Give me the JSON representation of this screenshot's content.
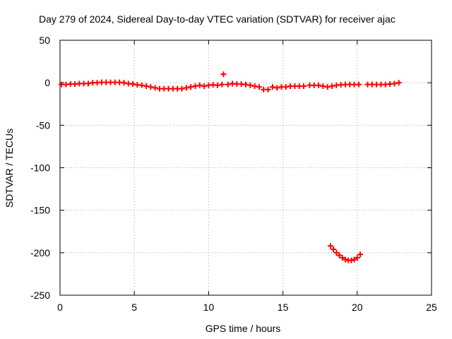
{
  "chart_data": {
    "type": "scatter",
    "title": "Day 279 of 2024, Sidereal Day-to-day VTEC variation (SDTVAR) for receiver ajac",
    "xlabel": "GPS time / hours",
    "ylabel": "SDTVAR / TECUs",
    "xlim": [
      0,
      25
    ],
    "ylim": [
      -250,
      50
    ],
    "xticks": [
      0,
      5,
      10,
      15,
      20,
      25
    ],
    "yticks": [
      -250,
      -200,
      -150,
      -100,
      -50,
      0,
      50
    ],
    "grid": true,
    "marker": "+",
    "series": [
      {
        "color": "#ff0000",
        "points": [
          [
            0.1,
            -2
          ],
          [
            0.4,
            -2
          ],
          [
            0.7,
            -1.5
          ],
          [
            1.0,
            -1.5
          ],
          [
            1.3,
            -1
          ],
          [
            1.6,
            -1
          ],
          [
            1.9,
            -1
          ],
          [
            2.2,
            0
          ],
          [
            2.5,
            0
          ],
          [
            2.8,
            0.5
          ],
          [
            3.1,
            0.5
          ],
          [
            3.4,
            0.5
          ],
          [
            3.7,
            0.5
          ],
          [
            4.0,
            0.5
          ],
          [
            4.3,
            0
          ],
          [
            4.6,
            -1
          ],
          [
            4.9,
            -1.5
          ],
          [
            5.2,
            -2.5
          ],
          [
            5.5,
            -3
          ],
          [
            5.8,
            -4
          ],
          [
            6.1,
            -5
          ],
          [
            6.4,
            -6
          ],
          [
            6.7,
            -7
          ],
          [
            7.0,
            -7
          ],
          [
            7.3,
            -7
          ],
          [
            7.6,
            -7
          ],
          [
            7.9,
            -7
          ],
          [
            8.2,
            -7
          ],
          [
            8.5,
            -6
          ],
          [
            8.8,
            -5
          ],
          [
            9.1,
            -4
          ],
          [
            9.4,
            -3
          ],
          [
            9.7,
            -4
          ],
          [
            10.0,
            -3
          ],
          [
            10.3,
            -2.5
          ],
          [
            10.6,
            -3
          ],
          [
            10.9,
            -2
          ],
          [
            11.0,
            10
          ],
          [
            11.3,
            -2
          ],
          [
            11.6,
            -1
          ],
          [
            11.9,
            -1.5
          ],
          [
            12.2,
            -1.5
          ],
          [
            12.5,
            -2
          ],
          [
            12.8,
            -3
          ],
          [
            13.1,
            -4
          ],
          [
            13.4,
            -5
          ],
          [
            13.7,
            -8
          ],
          [
            14.0,
            -8
          ],
          [
            14.3,
            -5
          ],
          [
            14.6,
            -6
          ],
          [
            14.9,
            -5
          ],
          [
            15.2,
            -5
          ],
          [
            15.5,
            -4
          ],
          [
            15.8,
            -4
          ],
          [
            16.1,
            -4
          ],
          [
            16.4,
            -4
          ],
          [
            16.8,
            -3
          ],
          [
            17.1,
            -3
          ],
          [
            17.4,
            -3
          ],
          [
            17.7,
            -4
          ],
          [
            18.0,
            -5
          ],
          [
            18.3,
            -4
          ],
          [
            18.6,
            -3
          ],
          [
            18.9,
            -2.5
          ],
          [
            19.2,
            -2
          ],
          [
            19.5,
            -2
          ],
          [
            19.8,
            -2
          ],
          [
            20.1,
            -2
          ],
          [
            20.7,
            -2
          ],
          [
            21.0,
            -2
          ],
          [
            21.3,
            -2
          ],
          [
            21.6,
            -2
          ],
          [
            21.9,
            -2
          ],
          [
            22.2,
            -1.5
          ],
          [
            22.5,
            -1
          ],
          [
            22.8,
            0
          ],
          [
            18.2,
            -192
          ],
          [
            18.4,
            -196
          ],
          [
            18.6,
            -200
          ],
          [
            18.8,
            -203
          ],
          [
            19.0,
            -206
          ],
          [
            19.2,
            -208
          ],
          [
            19.4,
            -209
          ],
          [
            19.6,
            -209
          ],
          [
            19.8,
            -208
          ],
          [
            20.0,
            -206
          ],
          [
            20.2,
            -202
          ]
        ]
      }
    ]
  }
}
